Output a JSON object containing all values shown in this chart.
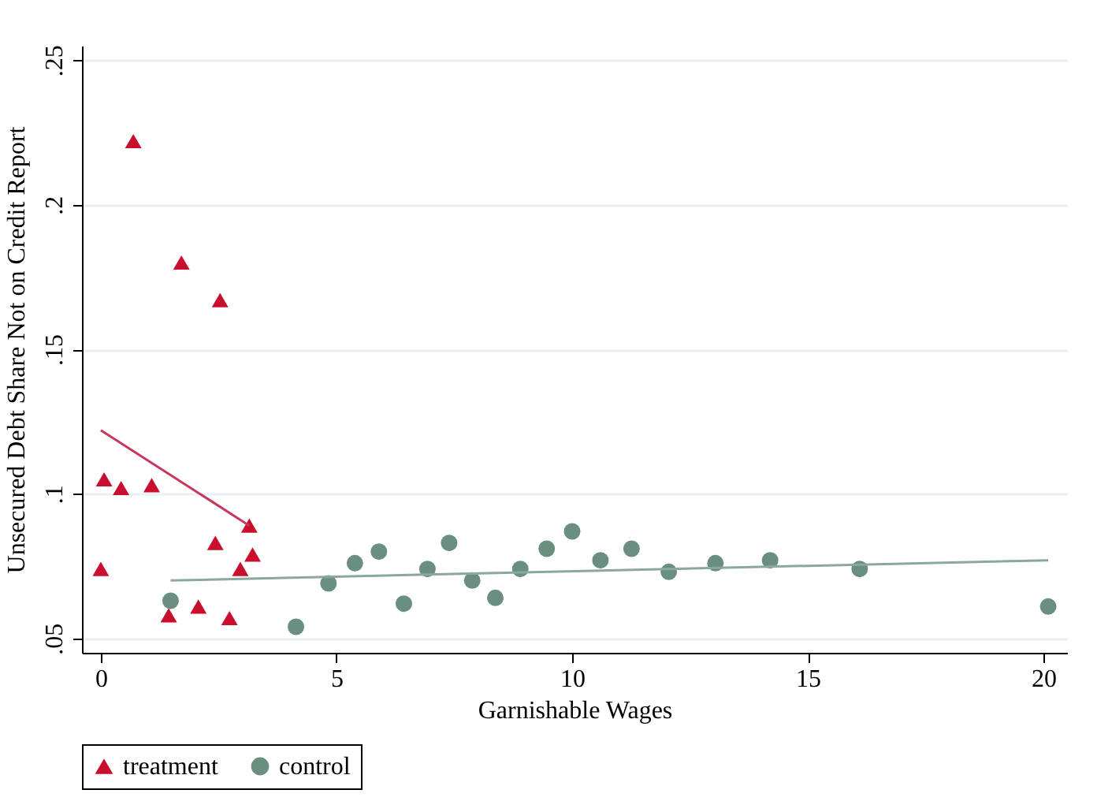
{
  "chart_data": {
    "type": "scatter",
    "xlabel": "Garnishable Wages",
    "ylabel": "Unsecured Debt Share Not on Credit Report",
    "xlim": [
      -0.4,
      20.5
    ],
    "ylim": [
      0.045,
      0.255
    ],
    "xticks": [
      0,
      5,
      10,
      15,
      20
    ],
    "yticks": [
      {
        "value": 0.05,
        "label": ".05"
      },
      {
        "value": 0.1,
        "label": ".1"
      },
      {
        "value": 0.15,
        "label": ".15"
      },
      {
        "value": 0.2,
        "label": ".2"
      },
      {
        "value": 0.25,
        "label": ".25"
      }
    ],
    "grid": "y",
    "legend": "bottom",
    "series": [
      {
        "name": "treatment",
        "color": "#c8102e",
        "marker": "triangle",
        "x": [
          0,
          0.07,
          0.43,
          1.08,
          0.69,
          1.71,
          2.53,
          2.43,
          3.15,
          3.22,
          2.96,
          1.44,
          2.07,
          2.73
        ],
        "values": [
          0.074,
          0.105,
          0.102,
          0.103,
          0.222,
          0.18,
          0.167,
          0.083,
          0.089,
          0.079,
          0.074,
          0.058,
          0.061,
          0.057
        ]
      },
      {
        "name": "control",
        "color": "#6a8e80",
        "marker": "circle",
        "x": [
          1.48,
          4.14,
          4.83,
          5.39,
          5.9,
          6.43,
          6.93,
          7.39,
          7.88,
          8.37,
          8.9,
          9.46,
          10.0,
          10.6,
          11.26,
          12.05,
          13.04,
          14.2,
          16.1,
          20.1
        ],
        "values": [
          0.063,
          0.054,
          0.069,
          0.076,
          0.08,
          0.062,
          0.074,
          0.083,
          0.07,
          0.064,
          0.074,
          0.081,
          0.087,
          0.077,
          0.081,
          0.073,
          0.076,
          0.077,
          0.074,
          0.061
        ]
      },
      {
        "type": "line",
        "color": "#c8385a",
        "x": [
          0,
          3.15
        ],
        "values": [
          0.122,
          0.089
        ]
      },
      {
        "type": "line",
        "color": "#8aa89c",
        "x": [
          1.48,
          20.1
        ],
        "values": [
          0.07,
          0.077
        ]
      }
    ]
  }
}
